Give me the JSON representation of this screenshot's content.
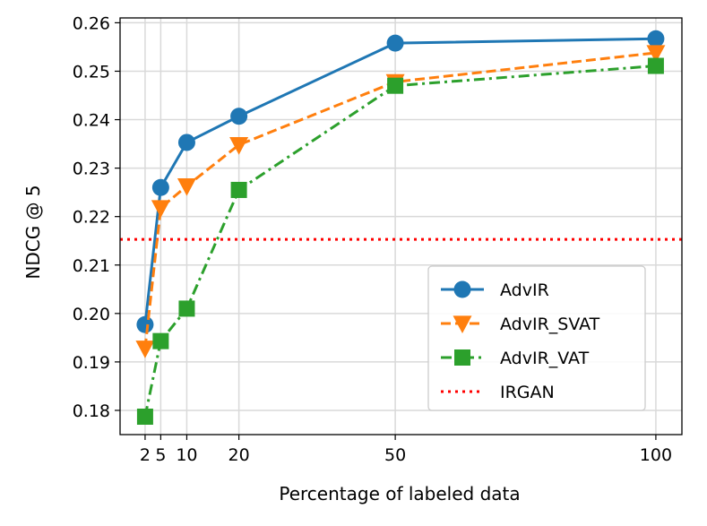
{
  "chart_data": {
    "type": "line",
    "title": "",
    "xlabel": "Percentage of labeled data",
    "ylabel": "NDCG @ 5",
    "x": [
      2,
      5,
      10,
      20,
      50,
      100
    ],
    "x_tick_labels": [
      "2",
      "5",
      "10",
      "20",
      "50",
      "100"
    ],
    "xlim": [
      -2.8,
      105
    ],
    "ylim": [
      0.175,
      0.261
    ],
    "y_ticks": [
      0.18,
      0.19,
      0.2,
      0.21,
      0.22,
      0.23,
      0.24,
      0.25,
      0.26
    ],
    "y_tick_labels": [
      "0.18",
      "0.19",
      "0.20",
      "0.21",
      "0.22",
      "0.23",
      "0.24",
      "0.25",
      "0.26"
    ],
    "grid": true,
    "legend_position": "lower-right",
    "series": [
      {
        "name": "AdvIR",
        "color": "#1f77b4",
        "line_style": "solid",
        "marker": "circle",
        "values": [
          0.1977,
          0.226,
          0.2353,
          0.2407,
          0.2558,
          0.2567
        ]
      },
      {
        "name": "AdvIR_SVAT",
        "color": "#ff7f0e",
        "line_style": "dashed",
        "marker": "triangle-down",
        "values": [
          0.1928,
          0.2218,
          0.2263,
          0.2348,
          0.2478,
          0.2538
        ]
      },
      {
        "name": "AdvIR_VAT",
        "color": "#2ca02c",
        "line_style": "dashdot",
        "marker": "square",
        "values": [
          0.1787,
          0.1943,
          0.201,
          0.2255,
          0.247,
          0.2511
        ]
      }
    ],
    "reference_lines": [
      {
        "name": "IRGAN",
        "color": "#ff0000",
        "line_style": "dotted",
        "value": 0.2153
      }
    ]
  }
}
